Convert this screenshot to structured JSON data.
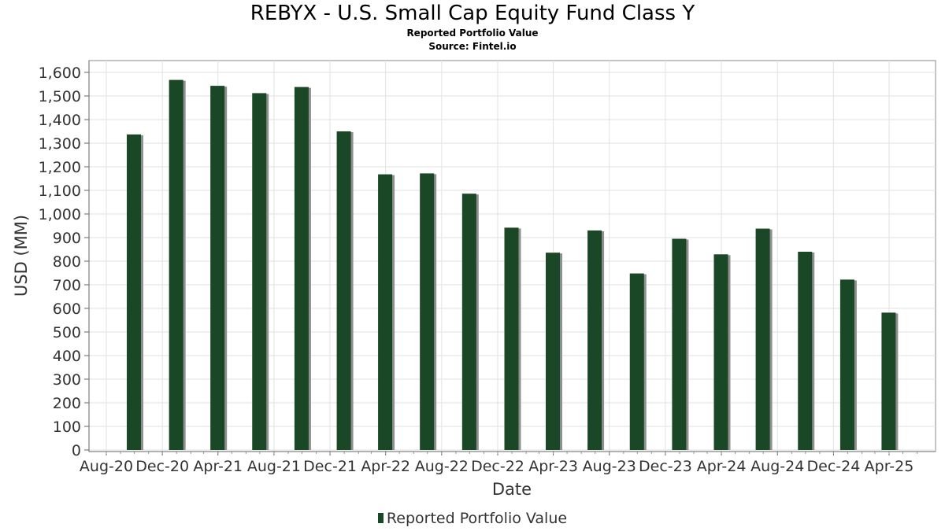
{
  "chart_data": {
    "type": "bar",
    "title": "REBYX - U.S. Small Cap Equity Fund Class Y",
    "subtitle_lines": [
      "Reported Portfolio Value",
      "Source: Fintel.io"
    ],
    "xlabel": "Date",
    "ylabel": "USD (MM)",
    "ylim": [
      0,
      1650
    ],
    "yticks": [
      0,
      100,
      200,
      300,
      400,
      500,
      600,
      700,
      800,
      900,
      1000,
      1100,
      1200,
      1300,
      1400,
      1500,
      1600
    ],
    "ytick_labels": [
      "0",
      "100",
      "200",
      "300",
      "400",
      "500",
      "600",
      "700",
      "800",
      "900",
      "1,000",
      "1,100",
      "1,200",
      "1,300",
      "1,400",
      "1,500",
      "1,600"
    ],
    "xticks": [
      "Aug-20",
      "Dec-20",
      "Apr-21",
      "Aug-21",
      "Dec-21",
      "Apr-22",
      "Aug-22",
      "Dec-22",
      "Apr-23",
      "Aug-23",
      "Dec-23",
      "Apr-24",
      "Aug-24",
      "Dec-24",
      "Apr-25"
    ],
    "grid": true,
    "legend_position": "bottom-center",
    "series": [
      {
        "name": "Reported Portfolio Value",
        "color": "#1a4726",
        "points": [
          {
            "date": "2020-09-30",
            "value": 1337
          },
          {
            "date": "2020-12-31",
            "value": 1568
          },
          {
            "date": "2021-03-31",
            "value": 1543
          },
          {
            "date": "2021-06-30",
            "value": 1512
          },
          {
            "date": "2021-09-30",
            "value": 1538
          },
          {
            "date": "2021-12-31",
            "value": 1350
          },
          {
            "date": "2022-03-31",
            "value": 1168
          },
          {
            "date": "2022-06-30",
            "value": 1172
          },
          {
            "date": "2022-09-30",
            "value": 1086
          },
          {
            "date": "2022-12-31",
            "value": 942
          },
          {
            "date": "2023-03-31",
            "value": 836
          },
          {
            "date": "2023-06-30",
            "value": 930
          },
          {
            "date": "2023-09-30",
            "value": 748
          },
          {
            "date": "2023-12-31",
            "value": 895
          },
          {
            "date": "2024-03-31",
            "value": 829
          },
          {
            "date": "2024-06-30",
            "value": 938
          },
          {
            "date": "2024-09-30",
            "value": 840
          },
          {
            "date": "2024-12-31",
            "value": 722
          },
          {
            "date": "2025-03-31",
            "value": 582
          }
        ]
      }
    ]
  }
}
